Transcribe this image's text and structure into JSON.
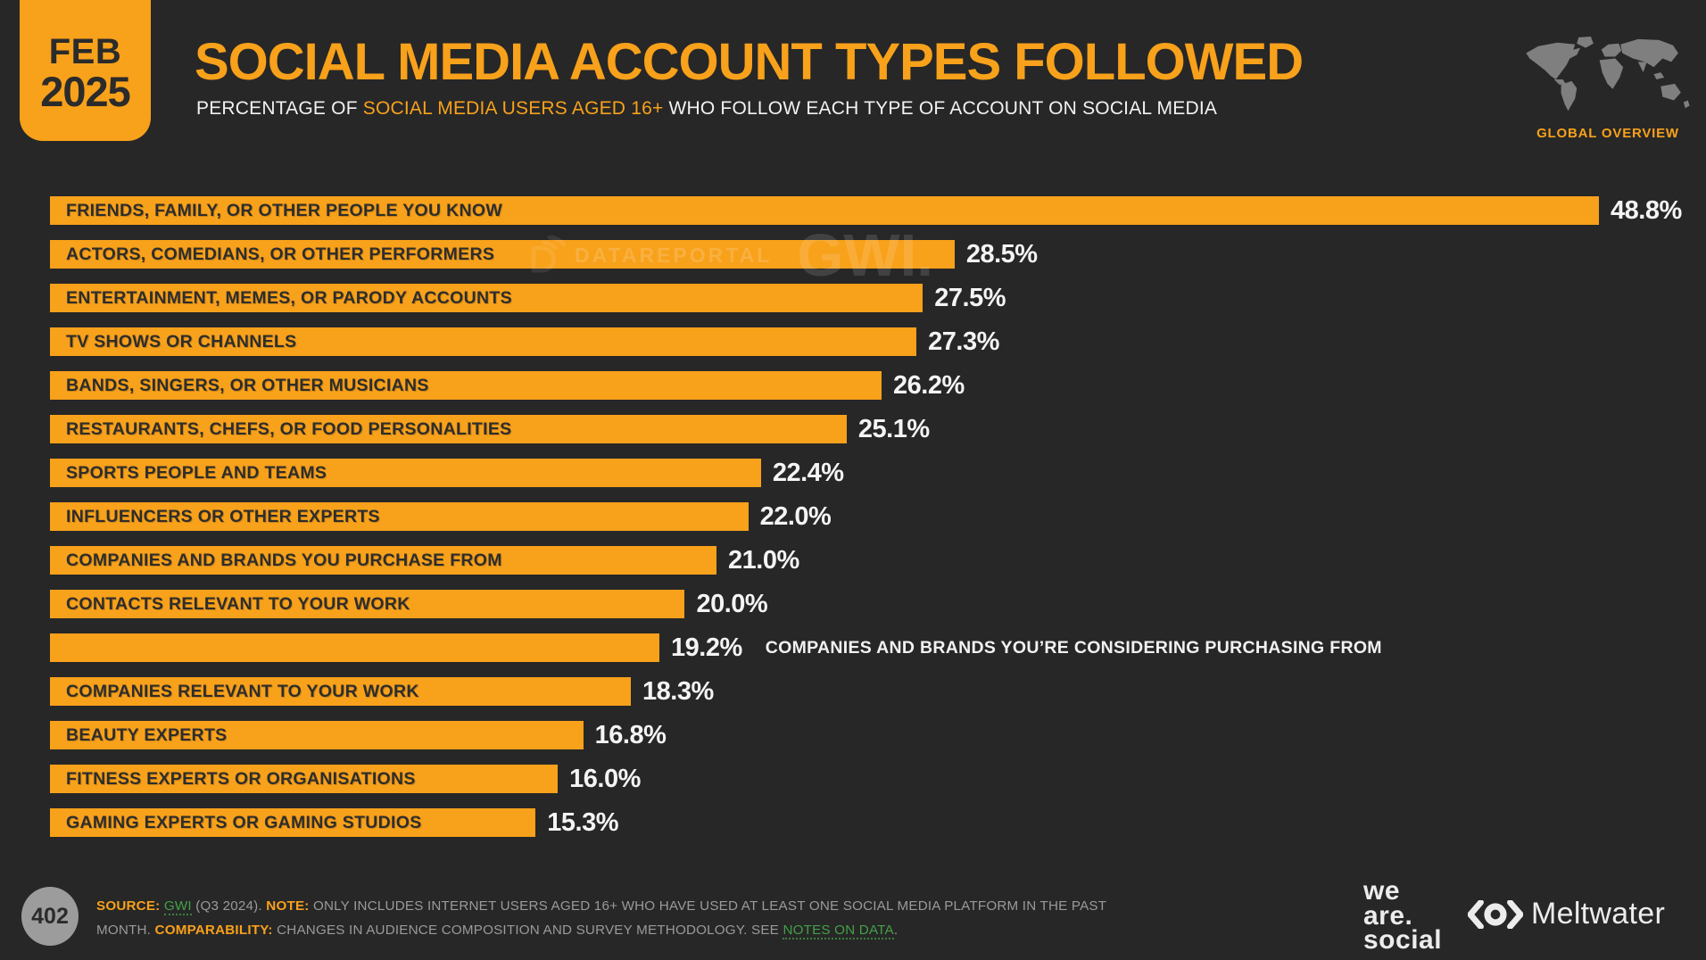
{
  "header": {
    "date_line1": "FEB",
    "date_line2": "2025",
    "title": "SOCIAL MEDIA ACCOUNT TYPES FOLLOWED",
    "subtitle_prefix": "PERCENTAGE OF ",
    "subtitle_highlight": "SOCIAL MEDIA USERS AGED 16+",
    "subtitle_suffix": " WHO FOLLOW EACH TYPE OF ACCOUNT ON SOCIAL MEDIA",
    "overview_label": "GLOBAL OVERVIEW"
  },
  "watermark": {
    "brand1": "DATAREPORTAL",
    "brand2": "GWI."
  },
  "chart_data": {
    "type": "bar",
    "orientation": "horizontal",
    "unit": "%",
    "xlim": [
      0,
      48.8
    ],
    "grid": false,
    "legend": false,
    "bar_color": "#F8A11B",
    "title": "SOCIAL MEDIA ACCOUNT TYPES FOLLOWED",
    "xlabel": "",
    "ylabel": "",
    "categories": [
      "FRIENDS, FAMILY, OR OTHER PEOPLE YOU KNOW",
      "ACTORS, COMEDIANS, OR OTHER PERFORMERS",
      "ENTERTAINMENT, MEMES, OR PARODY ACCOUNTS",
      "TV SHOWS OR CHANNELS",
      "BANDS, SINGERS, OR OTHER MUSICIANS",
      "RESTAURANTS, CHEFS, OR FOOD PERSONALITIES",
      "SPORTS PEOPLE AND TEAMS",
      "INFLUENCERS OR OTHER EXPERTS",
      "COMPANIES AND BRANDS YOU PURCHASE FROM",
      "CONTACTS RELEVANT TO YOUR WORK",
      "COMPANIES AND BRANDS YOU’RE CONSIDERING PURCHASING FROM",
      "COMPANIES RELEVANT TO YOUR WORK",
      "BEAUTY EXPERTS",
      "FITNESS EXPERTS OR ORGANISATIONS",
      "GAMING EXPERTS OR GAMING STUDIOS"
    ],
    "values": [
      48.8,
      28.5,
      27.5,
      27.3,
      26.2,
      25.1,
      22.4,
      22.0,
      21.0,
      20.0,
      19.2,
      18.3,
      16.8,
      16.0,
      15.3
    ],
    "items": [
      {
        "label": "FRIENDS, FAMILY, OR OTHER PEOPLE YOU KNOW",
        "value": 48.8,
        "display": "48.8%",
        "label_position": "inside"
      },
      {
        "label": "ACTORS, COMEDIANS, OR OTHER PERFORMERS",
        "value": 28.5,
        "display": "28.5%",
        "label_position": "inside"
      },
      {
        "label": "ENTERTAINMENT, MEMES, OR PARODY ACCOUNTS",
        "value": 27.5,
        "display": "27.5%",
        "label_position": "inside"
      },
      {
        "label": "TV SHOWS OR CHANNELS",
        "value": 27.3,
        "display": "27.3%",
        "label_position": "inside"
      },
      {
        "label": "BANDS, SINGERS, OR OTHER MUSICIANS",
        "value": 26.2,
        "display": "26.2%",
        "label_position": "inside"
      },
      {
        "label": "RESTAURANTS, CHEFS, OR FOOD PERSONALITIES",
        "value": 25.1,
        "display": "25.1%",
        "label_position": "inside"
      },
      {
        "label": "SPORTS PEOPLE AND TEAMS",
        "value": 22.4,
        "display": "22.4%",
        "label_position": "inside"
      },
      {
        "label": "INFLUENCERS OR OTHER EXPERTS",
        "value": 22.0,
        "display": "22.0%",
        "label_position": "inside"
      },
      {
        "label": "COMPANIES AND BRANDS YOU PURCHASE FROM",
        "value": 21.0,
        "display": "21.0%",
        "label_position": "inside"
      },
      {
        "label": "CONTACTS RELEVANT TO YOUR WORK",
        "value": 20.0,
        "display": "20.0%",
        "label_position": "inside"
      },
      {
        "label": "COMPANIES AND BRANDS YOU’RE CONSIDERING PURCHASING FROM",
        "value": 19.2,
        "display": "19.2%",
        "label_position": "outside"
      },
      {
        "label": "COMPANIES RELEVANT TO YOUR WORK",
        "value": 18.3,
        "display": "18.3%",
        "label_position": "inside"
      },
      {
        "label": "BEAUTY EXPERTS",
        "value": 16.8,
        "display": "16.8%",
        "label_position": "inside"
      },
      {
        "label": "FITNESS EXPERTS OR ORGANISATIONS",
        "value": 16.0,
        "display": "16.0%",
        "label_position": "inside"
      },
      {
        "label": "GAMING EXPERTS OR GAMING STUDIOS",
        "value": 15.3,
        "display": "15.3%",
        "label_position": "inside"
      }
    ]
  },
  "footer": {
    "page_number": "402",
    "source_label": "SOURCE: ",
    "source_link": "GWI",
    "source_rest": " (Q3 2024). ",
    "note_label": "NOTE: ",
    "note_text": "ONLY INCLUDES INTERNET USERS AGED 16+ WHO HAVE USED AT LEAST ONE SOCIAL MEDIA PLATFORM IN THE PAST MONTH. ",
    "comparability_label": "COMPARABILITY: ",
    "comparability_text": "CHANGES IN AUDIENCE COMPOSITION AND SURVEY METHODOLOGY. SEE ",
    "notes_link": "NOTES ON DATA",
    "period": ".",
    "logo_we_are_social": [
      "we",
      "are.",
      "social"
    ],
    "logo_meltwater": "Meltwater"
  },
  "colors": {
    "background": "#272727",
    "accent_orange": "#F8A11B",
    "bar_label_dark": "#2e2d2b",
    "value_white": "#f4f4f4",
    "footer_gray": "#9a9a9a",
    "link_green": "#43a047",
    "map_gray": "#7f7f7f"
  }
}
